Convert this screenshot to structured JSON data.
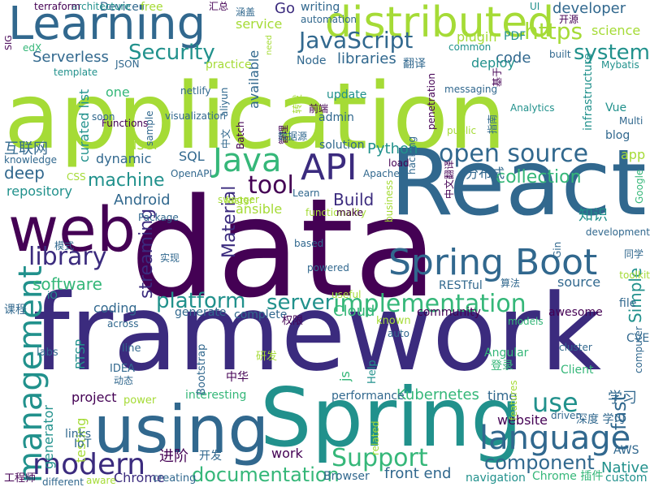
{
  "palette": {
    "dark_purple": "#440154",
    "indigo": "#3b2b7e",
    "blue": "#31688e",
    "teal": "#21918c",
    "green": "#35b779",
    "lime": "#a5db36",
    "yellow": "#fde725"
  },
  "words": [
    {
      "text": "application",
      "color": "#a5db36"
    },
    {
      "text": "data",
      "color": "#440154"
    },
    {
      "text": "framework",
      "color": "#3b2b7e"
    },
    {
      "text": "React",
      "color": "#31688e"
    },
    {
      "text": "Spring",
      "color": "#21918c"
    },
    {
      "text": "using",
      "color": "#31688e"
    },
    {
      "text": "web",
      "color": "#440154"
    },
    {
      "text": "Learning",
      "color": "#31688e"
    },
    {
      "text": "distributed",
      "color": "#a5db36"
    },
    {
      "text": "Spring Boot",
      "color": "#31688e"
    },
    {
      "text": "management",
      "color": "#21918c"
    },
    {
      "text": "language",
      "color": "#31688e"
    },
    {
      "text": "modern",
      "color": "#3b2b7e"
    },
    {
      "text": "Support",
      "color": "#35b779"
    },
    {
      "text": "implementation",
      "color": "#35b779"
    },
    {
      "text": "open source",
      "color": "#31688e"
    },
    {
      "text": "Java",
      "color": "#35b779"
    },
    {
      "text": "API",
      "color": "#3b2b7e"
    },
    {
      "text": "JavaScript",
      "color": "#31688e"
    },
    {
      "text": "https",
      "color": "#a5db36"
    },
    {
      "text": "library",
      "color": "#3b2b7e"
    },
    {
      "text": "tool",
      "color": "#440154"
    },
    {
      "text": "Security",
      "color": "#21918c"
    },
    {
      "text": "platform",
      "color": "#21918c"
    },
    {
      "text": "server",
      "color": "#21918c"
    },
    {
      "text": "system",
      "color": "#21918c"
    },
    {
      "text": "use",
      "color": "#21918c"
    },
    {
      "text": "documentation",
      "color": "#35b779"
    },
    {
      "text": "component",
      "color": "#31688e"
    },
    {
      "text": "machine",
      "color": "#21918c"
    },
    {
      "text": "collection",
      "color": "#35b779"
    },
    {
      "text": "Python",
      "color": "#21918c"
    },
    {
      "text": "Android",
      "color": "#31688e"
    },
    {
      "text": "Material",
      "color": "#3b2b7e"
    },
    {
      "text": "streaming",
      "color": "#3b2b7e"
    },
    {
      "text": "software",
      "color": "#35b779"
    },
    {
      "text": "Kubernetes",
      "color": "#35b779"
    },
    {
      "text": "Native",
      "color": "#21918c"
    },
    {
      "text": "Simple",
      "color": "#21918c"
    },
    {
      "text": "front end",
      "color": "#31688e"
    },
    {
      "text": "developer",
      "color": "#31688e"
    },
    {
      "text": "service",
      "color": "#a5db36"
    },
    {
      "text": "Serverless",
      "color": "#31688e"
    },
    {
      "text": "libraries",
      "color": "#31688e"
    },
    {
      "text": "code",
      "color": "#31688e"
    },
    {
      "text": "deploy",
      "color": "#21918c"
    },
    {
      "text": "Go",
      "color": "#3b2b7e"
    },
    {
      "text": "plugin",
      "color": "#a5db36"
    },
    {
      "text": "science",
      "color": "#a5db36"
    },
    {
      "text": "repository",
      "color": "#21918c"
    },
    {
      "text": "deep",
      "color": "#31688e"
    },
    {
      "text": "Build",
      "color": "#3b2b7e"
    },
    {
      "text": "ansible",
      "color": "#a5db36"
    },
    {
      "text": "Cloud",
      "color": "#35b779"
    },
    {
      "text": "source",
      "color": "#31688e"
    },
    {
      "text": "fast",
      "color": "#31688e"
    },
    {
      "text": "学习",
      "color": "#31688e"
    },
    {
      "text": "website",
      "color": "#440154"
    },
    {
      "text": "generator",
      "color": "#21918c"
    },
    {
      "text": "testing",
      "color": "#a5db36"
    },
    {
      "text": "coding",
      "color": "#31688e"
    },
    {
      "text": "project",
      "color": "#440154"
    },
    {
      "text": "time",
      "color": "#31688e"
    },
    {
      "text": "work",
      "color": "#440154"
    },
    {
      "text": "进阶",
      "color": "#440154"
    },
    {
      "text": "Chrome",
      "color": "#3b2b7e"
    },
    {
      "text": "user",
      "color": "#a5db36"
    },
    {
      "text": "SQL",
      "color": "#31688e"
    },
    {
      "text": "dynamic",
      "color": "#31688e"
    },
    {
      "text": "互联网",
      "color": "#31688e"
    },
    {
      "text": "curated list",
      "color": "#21918c"
    },
    {
      "text": "one",
      "color": "#35b779"
    },
    {
      "text": "update",
      "color": "#21918c"
    },
    {
      "text": "admin",
      "color": "#31688e"
    },
    {
      "text": "solution",
      "color": "#31688e"
    },
    {
      "text": "分布式",
      "color": "#31688e"
    },
    {
      "text": "知识",
      "color": "#21918c"
    },
    {
      "text": "app",
      "color": "#a5db36"
    },
    {
      "text": "blog",
      "color": "#31688e"
    },
    {
      "text": "Vue",
      "color": "#21918c"
    },
    {
      "text": "infrastructure",
      "color": "#21918c"
    },
    {
      "text": "Node",
      "color": "#31688e"
    },
    {
      "text": "翻译",
      "color": "#31688e"
    },
    {
      "text": "interesting",
      "color": "#35b779"
    },
    {
      "text": "performance",
      "color": "#31688e"
    },
    {
      "text": "generate",
      "color": "#31688e"
    },
    {
      "text": "complete",
      "color": "#31688e"
    },
    {
      "text": "awesome",
      "color": "#440154"
    },
    {
      "text": "community",
      "color": "#440154"
    },
    {
      "text": "RESTful",
      "color": "#31688e"
    },
    {
      "text": "file",
      "color": "#31688e"
    },
    {
      "text": "CVE",
      "color": "#31688e"
    },
    {
      "text": "Angular",
      "color": "#35b779"
    },
    {
      "text": "登录",
      "color": "#35b779"
    },
    {
      "text": "Client",
      "color": "#35b779"
    },
    {
      "text": "深度 学习",
      "color": "#31688e"
    },
    {
      "text": "links",
      "color": "#31688e"
    },
    {
      "text": "IoT",
      "color": "#31688e"
    },
    {
      "text": "开发",
      "color": "#31688e"
    },
    {
      "text": "Browser",
      "color": "#31688e"
    },
    {
      "text": "navigation",
      "color": "#21918c"
    },
    {
      "text": "Chrome 插件",
      "color": "#35b779"
    },
    {
      "text": "custom",
      "color": "#21918c"
    },
    {
      "text": "AWS",
      "color": "#31688e"
    },
    {
      "text": "工程师",
      "color": "#440154"
    },
    {
      "text": "different",
      "color": "#31688e"
    },
    {
      "text": "aware",
      "color": "#a5db36"
    },
    {
      "text": "creating",
      "color": "#31688e"
    },
    {
      "text": "js",
      "color": "#35b779"
    },
    {
      "text": "Help",
      "color": "#21918c"
    },
    {
      "text": "中华",
      "color": "#440154"
    },
    {
      "text": "研发",
      "color": "#a5db36"
    },
    {
      "text": "RTSP",
      "color": "#21918c"
    },
    {
      "text": "labs",
      "color": "#31688e"
    },
    {
      "text": "power",
      "color": "#a5db36"
    },
    {
      "text": "line",
      "color": "#31688e"
    },
    {
      "text": "IDEA",
      "color": "#31688e"
    },
    {
      "text": "Bootstrap",
      "color": "#31688e"
    },
    {
      "text": "动态",
      "color": "#31688e"
    },
    {
      "text": "权限",
      "color": "#440154"
    },
    {
      "text": "known",
      "color": "#a5db36"
    },
    {
      "text": "auto",
      "color": "#31688e"
    },
    {
      "text": "models",
      "color": "#35b779"
    },
    {
      "text": "cluster",
      "color": "#31688e"
    },
    {
      "text": "computer",
      "color": "#31688e"
    },
    {
      "text": "across",
      "color": "#31688e"
    },
    {
      "text": "课程",
      "color": "#31688e"
    },
    {
      "text": "iO",
      "color": "#21918c"
    },
    {
      "text": "useful",
      "color": "#a5db36"
    },
    {
      "text": "powered",
      "color": "#31688e"
    },
    {
      "text": "based",
      "color": "#31688e"
    },
    {
      "text": "实现",
      "color": "#31688e"
    },
    {
      "text": "算法",
      "color": "#31688e"
    },
    {
      "text": "toolkit",
      "color": "#a5db36"
    },
    {
      "text": "同学",
      "color": "#31688e"
    },
    {
      "text": "模式",
      "color": "#31688e"
    },
    {
      "text": "Package",
      "color": "#31688e"
    },
    {
      "text": "functionality",
      "color": "#a5db36"
    },
    {
      "text": "make",
      "color": "#440154"
    },
    {
      "text": "business",
      "color": "#a5db36"
    },
    {
      "text": "Gin",
      "color": "#31688e"
    },
    {
      "text": "development",
      "color": "#31688e"
    },
    {
      "text": "swagger",
      "color": "#a5db36"
    },
    {
      "text": "faster",
      "color": "#a5db36"
    },
    {
      "text": "Learn",
      "color": "#31688e"
    },
    {
      "text": "OpenAPI",
      "color": "#31688e"
    },
    {
      "text": "Apache",
      "color": "#31688e"
    },
    {
      "text": "load",
      "color": "#440154"
    },
    {
      "text": "hacking",
      "color": "#31688e"
    },
    {
      "text": "中文翻译",
      "color": "#440154"
    },
    {
      "text": "CSS",
      "color": "#a5db36"
    },
    {
      "text": "knowledge",
      "color": "#31688e"
    },
    {
      "text": "管理",
      "color": "#440154"
    },
    {
      "text": "数据源",
      "color": "#31688e"
    },
    {
      "text": "Batch",
      "color": "#440154"
    },
    {
      "text": "中文",
      "color": "#31688e"
    },
    {
      "text": "available",
      "color": "#31688e"
    },
    {
      "text": "sample",
      "color": "#31688e"
    },
    {
      "text": "Functions",
      "color": "#440154"
    },
    {
      "text": "visualization",
      "color": "#31688e"
    },
    {
      "text": "soon",
      "color": "#31688e"
    },
    {
      "text": "aliyun",
      "color": "#31688e"
    },
    {
      "text": "netlify",
      "color": "#31688e"
    },
    {
      "text": "practice",
      "color": "#a5db36"
    },
    {
      "text": "转发",
      "color": "#a5db36"
    },
    {
      "text": "前端",
      "color": "#440154"
    },
    {
      "text": "penetration",
      "color": "#440154"
    },
    {
      "text": "public",
      "color": "#a5db36"
    },
    {
      "text": "messaging",
      "color": "#31688e"
    },
    {
      "text": "指南",
      "color": "#31688e"
    },
    {
      "text": "基于",
      "color": "#440154"
    },
    {
      "text": "Analytics",
      "color": "#21918c"
    },
    {
      "text": "Multi",
      "color": "#31688e"
    },
    {
      "text": "Mybatis",
      "color": "#21918c"
    },
    {
      "text": "built",
      "color": "#31688e"
    },
    {
      "text": "common",
      "color": "#21918c"
    },
    {
      "text": "PDF",
      "color": "#21918c"
    },
    {
      "text": "开源",
      "color": "#440154"
    },
    {
      "text": "UI",
      "color": "#21918c"
    },
    {
      "text": "automation",
      "color": "#31688e"
    },
    {
      "text": "writing",
      "color": "#31688e"
    },
    {
      "text": "涵盖",
      "color": "#31688e"
    },
    {
      "text": "汇总",
      "color": "#440154"
    },
    {
      "text": "free",
      "color": "#a5db36"
    },
    {
      "text": "Device",
      "color": "#31688e"
    },
    {
      "text": "architecture",
      "color": "#21918c"
    },
    {
      "text": "terraform",
      "color": "#440154"
    },
    {
      "text": "SIG",
      "color": "#440154"
    },
    {
      "text": "edX",
      "color": "#35b779"
    },
    {
      "text": "template",
      "color": "#21918c"
    },
    {
      "text": "JSON",
      "color": "#31688e"
    },
    {
      "text": "need",
      "color": "#a5db36"
    },
    {
      "text": "features",
      "color": "#a5db36"
    },
    {
      "text": "related",
      "color": "#a5db36"
    },
    {
      "text": "driven",
      "color": "#31688e"
    },
    {
      "text": "Google",
      "color": "#35b779"
    },
    {
      "text": "highly",
      "color": "#a5db36"
    },
    {
      "text": "笔记",
      "color": "#a5db36"
    }
  ]
}
